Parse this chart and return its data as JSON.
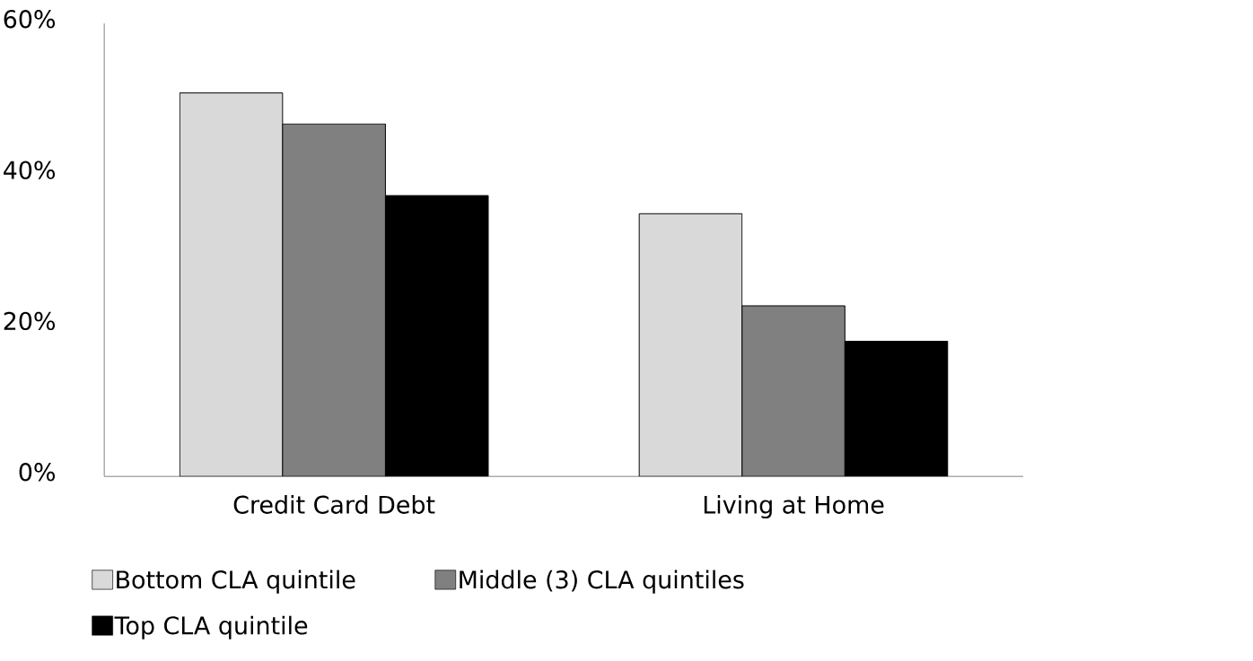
{
  "chart_data": {
    "type": "bar",
    "categories": [
      "Credit Card Debt",
      "Living at Home"
    ],
    "series": [
      {
        "name": "Bottom CLA quintile",
        "color": "#d9d9d9",
        "values": [
          50.8,
          34.8
        ]
      },
      {
        "name": "Middle (3)  CLA quintiles",
        "color": "#808080",
        "values": [
          46.7,
          22.6
        ]
      },
      {
        "name": "Top CLA quintile",
        "color": "#000000",
        "values": [
          37.2,
          17.9
        ]
      }
    ],
    "ylim": [
      0,
      60
    ],
    "yticks": [
      {
        "value": 0,
        "label": "0%"
      },
      {
        "value": 20,
        "label": "20%"
      },
      {
        "value": 40,
        "label": "40%"
      },
      {
        "value": 60,
        "label": "60%"
      }
    ],
    "legend": "bottom"
  }
}
